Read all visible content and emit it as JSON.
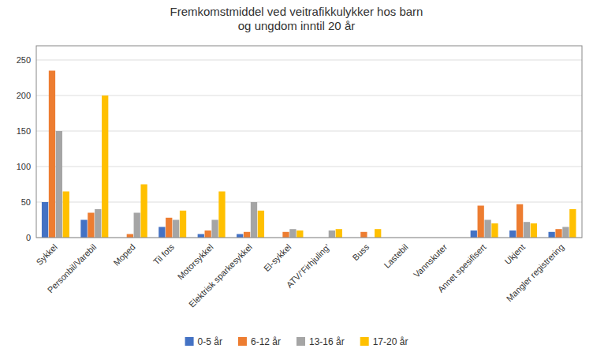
{
  "chart_data": {
    "type": "bar",
    "title": "Fremkomstmiddel ved veitrafikkulykker hos barn\nog ungdom inntil 20 år",
    "categories": [
      "Sykkel",
      "Personbil/Varebil",
      "Moped",
      "Til fots",
      "Motorsykkel",
      "Elektrisk sparkesykkel",
      "El-sykkel",
      "ATV/’Firhjuling’",
      "Buss",
      "Lastebil",
      "Vannskuter",
      "Annet spesifisert",
      "Ukjent",
      "Mangler registrering"
    ],
    "series": [
      {
        "name": "0-5 år",
        "color": "#4472C4",
        "values": [
          50,
          25,
          0,
          15,
          5,
          5,
          0,
          0,
          0,
          0,
          0,
          10,
          10,
          8
        ]
      },
      {
        "name": "6-12 år",
        "color": "#ED7D31",
        "values": [
          235,
          35,
          5,
          28,
          10,
          8,
          8,
          0,
          8,
          0,
          0,
          45,
          47,
          12
        ]
      },
      {
        "name": "13-16 år",
        "color": "#A5A5A5",
        "values": [
          150,
          40,
          35,
          25,
          25,
          50,
          12,
          10,
          0,
          0,
          0,
          25,
          22,
          15
        ]
      },
      {
        "name": "17-20 år",
        "color": "#FFC000",
        "values": [
          65,
          200,
          75,
          38,
          65,
          38,
          10,
          12,
          12,
          0,
          0,
          20,
          20,
          40
        ]
      }
    ],
    "ylim": [
      0,
      270
    ],
    "yticks": [
      0,
      50,
      100,
      150,
      200,
      250
    ],
    "grid": true,
    "legend": "bottom"
  }
}
